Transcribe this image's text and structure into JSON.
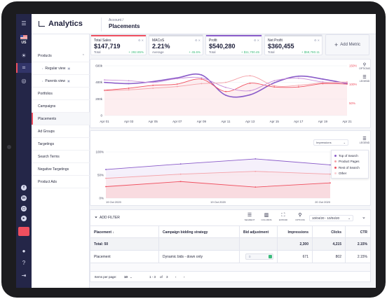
{
  "header": {
    "app_title": "Analytics",
    "breadcrumb": "Account /",
    "page_title": "Placements"
  },
  "rail": {
    "region": "US"
  },
  "sidebar": {
    "items": [
      {
        "label": "Products",
        "type": "group"
      },
      {
        "label": "Regular view",
        "type": "sub"
      },
      {
        "label": "Parents view",
        "type": "sub"
      },
      {
        "label": "Portfolios"
      },
      {
        "label": "Campaigns"
      },
      {
        "label": "Placements",
        "selected": true
      },
      {
        "label": "Ad Groups"
      },
      {
        "label": "Targetings"
      },
      {
        "label": "Search Terms"
      },
      {
        "label": "Negative Targetings"
      },
      {
        "label": "Product Ads"
      }
    ]
  },
  "metrics": [
    {
      "name": "Total Sales",
      "value": "$147,719",
      "foot": "Total",
      "change": "+ 292.85%",
      "color": "#ef4f5f"
    },
    {
      "name": "MACoS",
      "value": "2.21%",
      "foot": "Average",
      "change": "+ 45.6%",
      "color": "#d9dbe3"
    },
    {
      "name": "Profit",
      "value": "$540,280",
      "foot": "Total",
      "change": "+ $11,700.45",
      "color": "#8a5cc9"
    },
    {
      "name": "Net Profit",
      "value": "$360,455",
      "foot": "Total",
      "change": "+ $59,780.11",
      "color": "#d9dbe3"
    }
  ],
  "add_metric_label": "Add Metric",
  "chart_data": [
    {
      "type": "line",
      "categories": [
        "Apr 01",
        "Apr 03",
        "Apr 05",
        "Apr 07",
        "Apr 09",
        "Apr 11",
        "Apr 13",
        "Apr 15",
        "Apr 17",
        "Apr 19",
        "Apr 21"
      ],
      "left_ticks": [
        "600k",
        "400k",
        "200k",
        "0"
      ],
      "right_ticks": [
        "150%",
        "100%",
        "50%"
      ],
      "ylim": [
        0,
        600
      ],
      "series": [
        {
          "name": "Profit",
          "color": "#8a5cc9",
          "values": [
            400,
            385,
            410,
            455,
            490,
            245,
            250,
            395,
            475,
            440,
            385
          ]
        },
        {
          "name": "Total Sales",
          "color": "#ef4f5f",
          "values": [
            305,
            330,
            365,
            380,
            440,
            290,
            390,
            345,
            345,
            385,
            380
          ]
        },
        {
          "name": "Net Profit",
          "color": "#c98fd8",
          "values": [
            430,
            420,
            400,
            445,
            455,
            340,
            300,
            420,
            450,
            405,
            395
          ]
        },
        {
          "name": "MACoS",
          "color": "#f4a1a8",
          "values": [
            300,
            310,
            330,
            350,
            385,
            400,
            480,
            360,
            365,
            395,
            405
          ]
        }
      ],
      "tools": {
        "options": "OPTIONS",
        "legend": "LEGEND"
      }
    },
    {
      "type": "area",
      "x_ticks": [
        "19 Oct 2020",
        "19 Oct 2020",
        "20 Oct 2020"
      ],
      "y_ticks": [
        "100%",
        "50%",
        "0%"
      ],
      "metric_select": "Impressions",
      "legend_label": "LEGEND",
      "series": [
        {
          "name": "Top of Search",
          "color": "#8a5cc9",
          "values": [
            62,
            74,
            85,
            72
          ]
        },
        {
          "name": "Product Pages",
          "color": "#f4a1a8",
          "values": [
            43,
            52,
            58,
            52
          ]
        },
        {
          "name": "Rest of Search",
          "color": "#ef4f5f",
          "values": [
            25,
            36,
            24,
            33
          ]
        },
        {
          "name": "Other",
          "color": "#f9d0d4",
          "values": []
        }
      ]
    }
  ],
  "table_bar": {
    "filter_label": "ADD FILTER",
    "buttons": [
      "SEGMENT",
      "COLUMNS",
      "EXPAND",
      "OPTIONS"
    ],
    "date_range": "10/04/20 - 10/04/20"
  },
  "table": {
    "columns": [
      "Placement",
      "Campaign bidding strategy",
      "Bid adjustment",
      "Impressions",
      "Clicks",
      "CTR"
    ],
    "total": {
      "label": "Total: 50",
      "impressions": "2,300",
      "clicks": "4,215",
      "ctr": "2.15%"
    },
    "rows": [
      {
        "placement": "Placement",
        "strategy": "Dynamic bids - down only",
        "bid": "0",
        "impressions": "671",
        "clicks": "802",
        "ctr": "2.15%"
      }
    ]
  },
  "pager": {
    "label": "Items per page:",
    "per_page": "10",
    "range": "1 - 3",
    "of": "of",
    "total": "3"
  }
}
